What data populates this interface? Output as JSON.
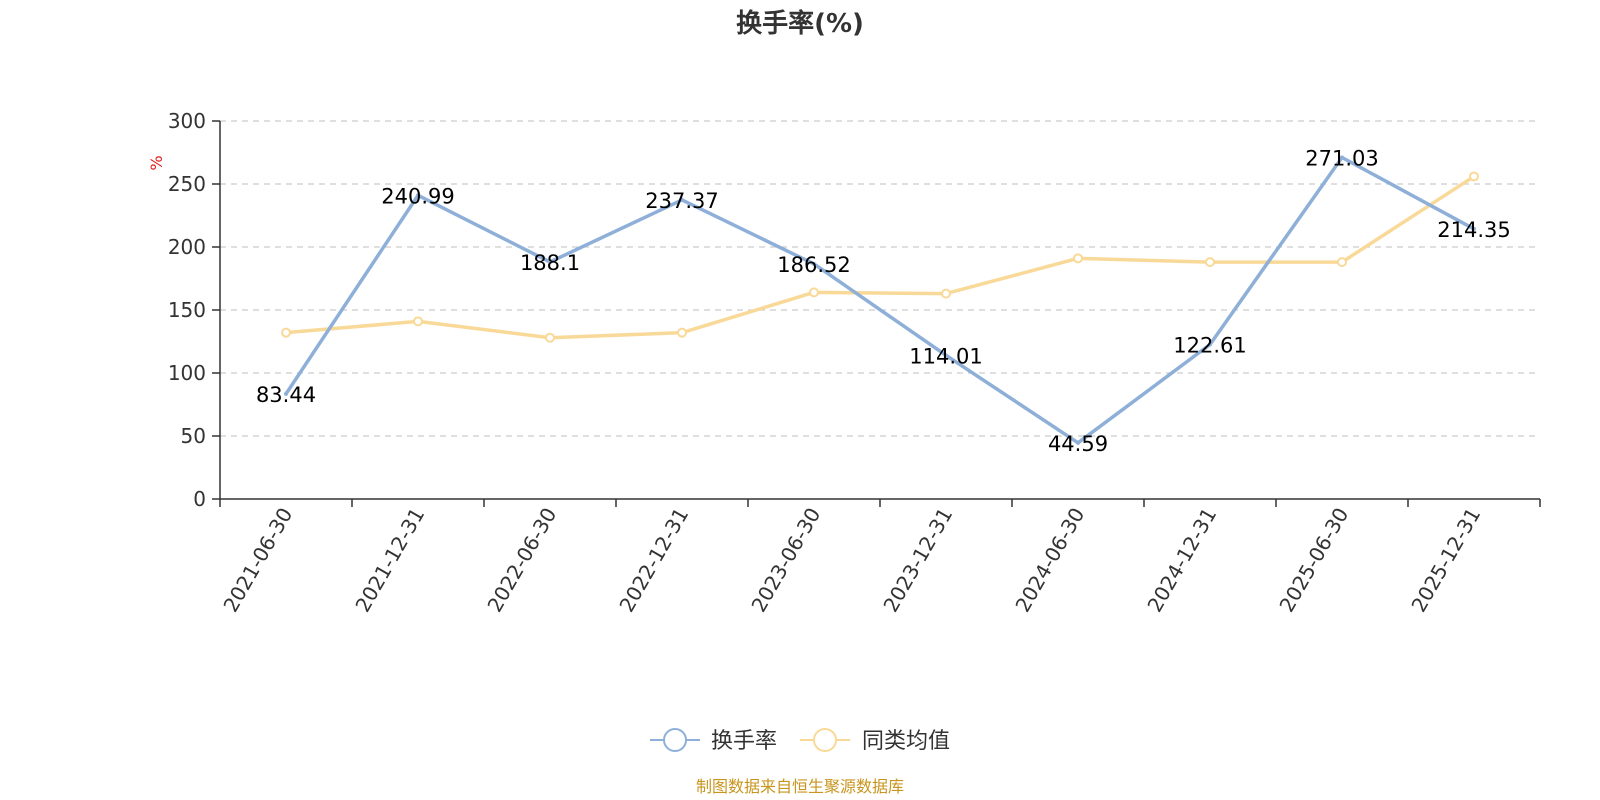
{
  "chart_data": {
    "type": "line",
    "title": "换手率(%)",
    "ylabel": "%",
    "ylim": [
      0,
      300
    ],
    "yticks": [
      0,
      50,
      100,
      150,
      200,
      250,
      300
    ],
    "categories": [
      "2021-06-30",
      "2021-12-31",
      "2022-06-30",
      "2022-12-31",
      "2023-06-30",
      "2023-12-31",
      "2024-06-30",
      "2024-12-31",
      "2025-06-30",
      "2025-12-31"
    ],
    "series": [
      {
        "name": "换手率",
        "color": "#8eafd8",
        "values": [
          83.44,
          240.99,
          188.1,
          237.37,
          186.52,
          114.01,
          44.59,
          122.61,
          271.03,
          214.35
        ],
        "labels": [
          "83.44",
          "240.99",
          "188.1",
          "237.37",
          "186.52",
          "114.01",
          "44.59",
          "122.61",
          "271.03",
          "214.35"
        ]
      },
      {
        "name": "同类均值",
        "color": "#f9d998",
        "values": [
          132,
          141,
          128,
          132,
          164,
          163,
          191,
          188,
          188,
          256
        ]
      }
    ],
    "grid": true,
    "legend_position": "bottom-center"
  },
  "footer": {
    "source": "制图数据来自恒生聚源数据库"
  }
}
